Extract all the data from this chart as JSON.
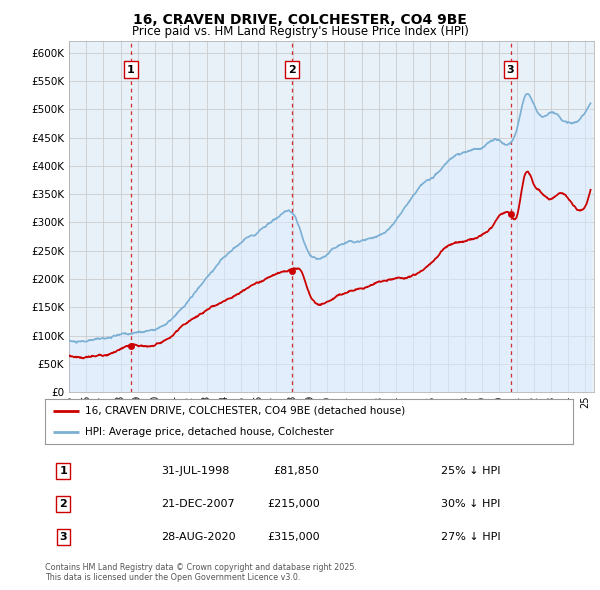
{
  "title": "16, CRAVEN DRIVE, COLCHESTER, CO4 9BE",
  "subtitle": "Price paid vs. HM Land Registry's House Price Index (HPI)",
  "hpi_label": "HPI: Average price, detached house, Colchester",
  "property_label": "16, CRAVEN DRIVE, COLCHESTER, CO4 9BE (detached house)",
  "footnote": "Contains HM Land Registry data © Crown copyright and database right 2025.\nThis data is licensed under the Open Government Licence v3.0.",
  "sale_points": [
    {
      "num": 1,
      "date": "31-JUL-1998",
      "price": 81850,
      "pct": "25% ↓ HPI",
      "year": 1998.58
    },
    {
      "num": 2,
      "date": "21-DEC-2007",
      "price": 215000,
      "pct": "30% ↓ HPI",
      "year": 2007.97
    },
    {
      "num": 3,
      "date": "28-AUG-2020",
      "price": 315000,
      "pct": "27% ↓ HPI",
      "year": 2020.65
    }
  ],
  "ylim": [
    0,
    620000
  ],
  "xlim_start": 1995.0,
  "xlim_end": 2025.5,
  "yticks": [
    0,
    50000,
    100000,
    150000,
    200000,
    250000,
    300000,
    350000,
    400000,
    450000,
    500000,
    550000,
    600000
  ],
  "grid_color": "#cccccc",
  "hpi_color": "#7bafd4",
  "hpi_fill": "#ddeeff",
  "property_color": "#cc0000",
  "vline_color": "#cc0000",
  "background_color": "#ffffff",
  "chart_bg": "#e8f0f8"
}
